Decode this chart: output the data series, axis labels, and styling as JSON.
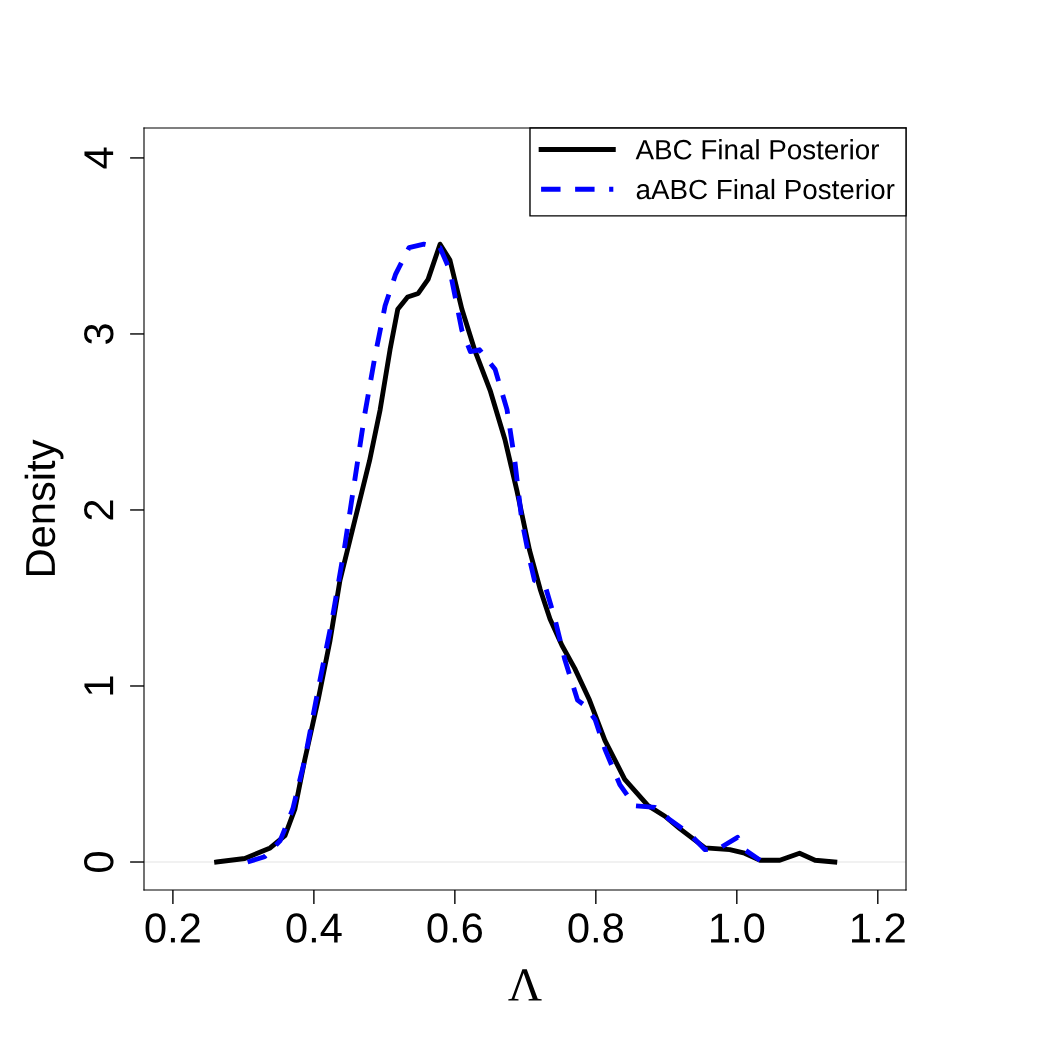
{
  "chart_data": {
    "type": "line",
    "xlabel": "Λ",
    "ylabel": "Density",
    "xlim": [
      0.159,
      1.24
    ],
    "ylim": [
      -0.159,
      4.17
    ],
    "xticks": [
      0.2,
      0.4,
      0.6,
      0.8,
      {
        "value": 1,
        "label": "1.0"
      },
      1.2
    ],
    "yticks": [
      0,
      1,
      2,
      3,
      4
    ],
    "legend": "top right",
    "grid": false,
    "ref_lines": [
      {
        "axis": "y",
        "value": 0,
        "color": "#ececec"
      }
    ],
    "series": [
      {
        "name": "ABC Final Posterior",
        "color": "#000000",
        "line_style": "solid",
        "x": [
          0.262,
          0.302,
          0.338,
          0.359,
          0.373,
          0.387,
          0.406,
          0.423,
          0.437,
          0.458,
          0.479,
          0.494,
          0.508,
          0.519,
          0.533,
          0.548,
          0.562,
          0.579,
          0.593,
          0.61,
          0.628,
          0.65,
          0.671,
          0.688,
          0.706,
          0.721,
          0.735,
          0.752,
          0.77,
          0.791,
          0.813,
          0.841,
          0.874,
          0.898,
          0.919,
          0.955,
          0.99,
          1.011,
          1.033,
          1.061,
          1.089,
          1.111,
          1.139
        ],
        "values": [
          0,
          0.02,
          0.08,
          0.15,
          0.3,
          0.58,
          0.92,
          1.26,
          1.6,
          1.94,
          2.28,
          2.57,
          2.91,
          3.14,
          3.21,
          3.23,
          3.31,
          3.51,
          3.42,
          3.14,
          2.91,
          2.68,
          2.4,
          2.11,
          1.77,
          1.55,
          1.38,
          1.23,
          1.1,
          0.92,
          0.69,
          0.47,
          0.32,
          0.26,
          0.19,
          0.08,
          0.07,
          0.05,
          0.01,
          0.01,
          0.05,
          0.01,
          0
        ]
      },
      {
        "name": "aABC Final Posterior",
        "color": "#0000ff",
        "line_style": "dashed",
        "x": [
          0.306,
          0.33,
          0.352,
          0.37,
          0.387,
          0.406,
          0.426,
          0.444,
          0.458,
          0.472,
          0.487,
          0.501,
          0.516,
          0.535,
          0.556,
          0.579,
          0.593,
          0.61,
          0.622,
          0.635,
          0.657,
          0.674,
          0.685,
          0.695,
          0.706,
          0.713,
          0.728,
          0.742,
          0.756,
          0.774,
          0.784,
          0.799,
          0.813,
          0.834,
          0.855,
          0.884,
          0.905,
          0.933,
          0.955,
          0.976,
          1.001,
          1.011,
          1.033
        ],
        "values": [
          0,
          0.03,
          0.12,
          0.3,
          0.58,
          0.98,
          1.38,
          1.8,
          2.17,
          2.54,
          2.88,
          3.16,
          3.34,
          3.49,
          3.51,
          3.49,
          3.36,
          3.02,
          2.9,
          2.91,
          2.8,
          2.57,
          2.28,
          1.94,
          1.72,
          1.6,
          1.57,
          1.38,
          1.15,
          0.92,
          0.89,
          0.81,
          0.64,
          0.44,
          0.32,
          0.31,
          0.24,
          0.16,
          0.07,
          0.08,
          0.14,
          0.07,
          0.01
        ]
      }
    ]
  }
}
